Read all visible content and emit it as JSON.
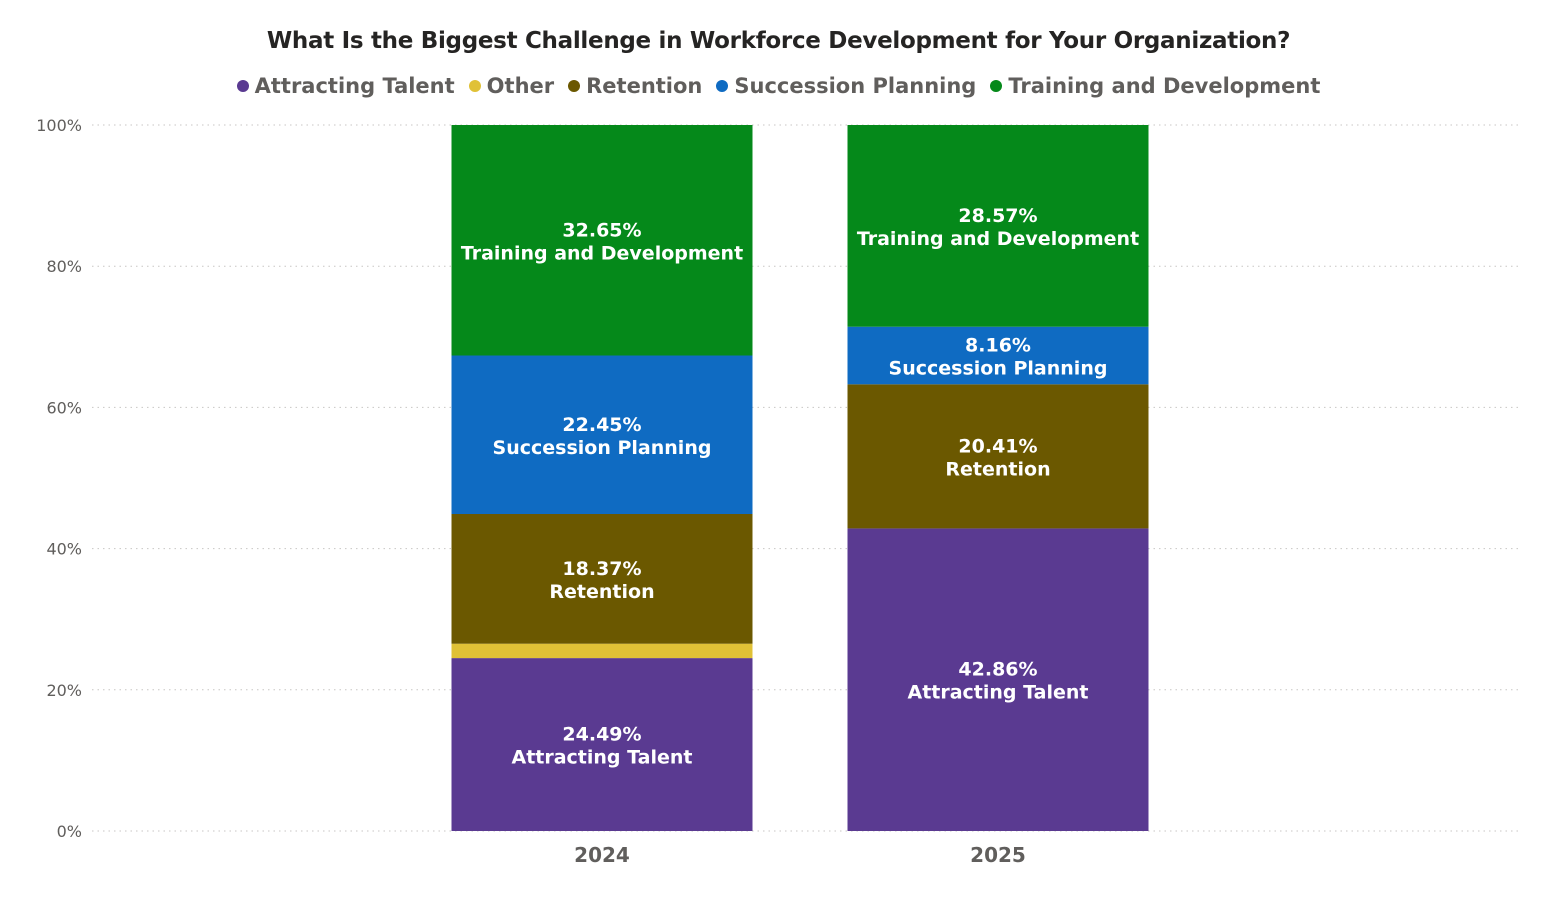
{
  "chart_data": {
    "type": "bar",
    "stacked": true,
    "title": "What Is the Biggest Challenge in Workforce Development for Your Organization?",
    "categories": [
      "2024",
      "2025"
    ],
    "ylim": [
      0,
      100
    ],
    "yticks": [
      "0%",
      "20%",
      "40%",
      "60%",
      "80%",
      "100%"
    ],
    "ytick_values": [
      0,
      20,
      40,
      60,
      80,
      100
    ],
    "grid": true,
    "legend_position": "top-center",
    "series": [
      {
        "name": "Attracting Talent",
        "color": "#5a3a91",
        "values": [
          24.49,
          42.86
        ],
        "labels": [
          "24.49%",
          "42.86%"
        ]
      },
      {
        "name": "Other",
        "color": "#e0c136",
        "values": [
          2.04,
          0
        ],
        "labels": [
          "",
          ""
        ]
      },
      {
        "name": "Retention",
        "color": "#6b5800",
        "values": [
          18.37,
          20.41
        ],
        "labels": [
          "18.37%",
          "20.41%"
        ]
      },
      {
        "name": "Succession Planning",
        "color": "#0f6bc2",
        "values": [
          22.45,
          8.16
        ],
        "labels": [
          "22.45%",
          "8.16%"
        ]
      },
      {
        "name": "Training and Development",
        "color": "#05891a",
        "values": [
          32.65,
          28.57
        ],
        "labels": [
          "32.65%",
          "28.57%"
        ]
      }
    ]
  }
}
